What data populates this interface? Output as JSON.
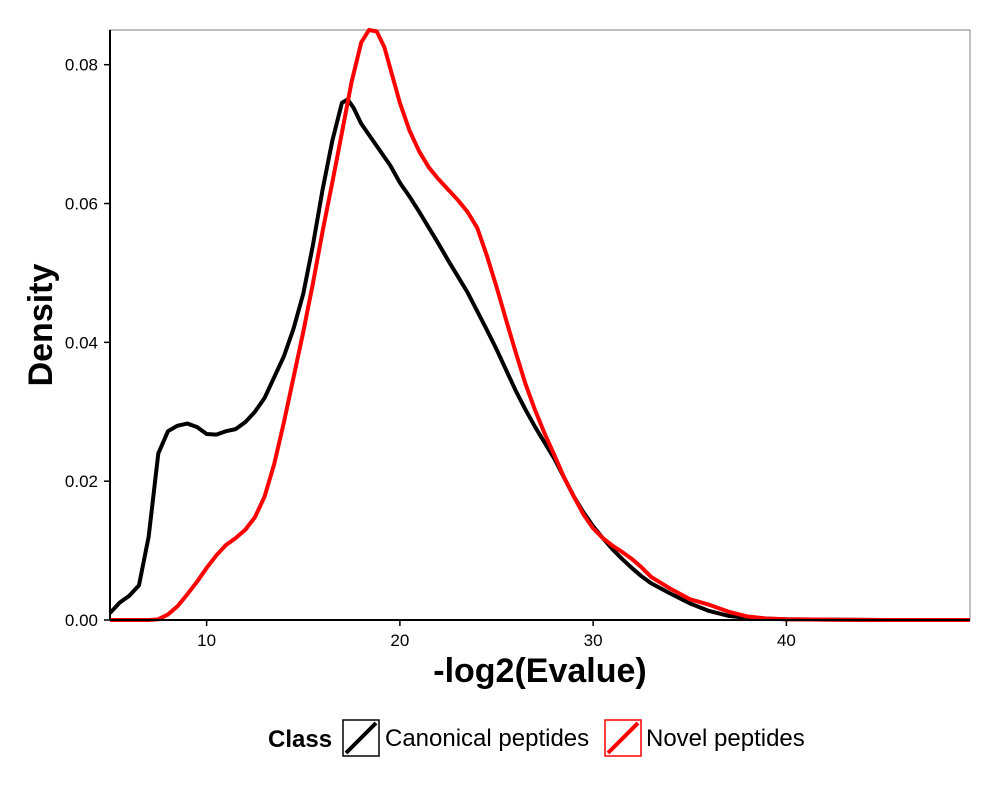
{
  "chart_data": {
    "type": "line",
    "title": "",
    "xlabel": "-log2(Evalue)",
    "ylabel": "Density",
    "xlim": [
      5,
      49.5
    ],
    "ylim": [
      0,
      0.085
    ],
    "x_ticks": [
      10,
      20,
      30,
      40
    ],
    "y_ticks": [
      0,
      0.02,
      0.04,
      0.06,
      0.08
    ],
    "x_tick_labels": [
      "10",
      "20",
      "30",
      "40"
    ],
    "y_tick_labels": [
      "0.00",
      "0.02",
      "0.04",
      "0.06",
      "0.08"
    ],
    "grid": false,
    "legend_position": "bottom",
    "legend_title": "Class",
    "series": [
      {
        "name": "Canonical peptides",
        "color": "#000000",
        "x": [
          5,
          5.5,
          6,
          6.5,
          7,
          7.5,
          8,
          8.5,
          9,
          9.5,
          10,
          10.5,
          11,
          11.5,
          12,
          12.5,
          13,
          13.5,
          14,
          14.5,
          15,
          15.5,
          16,
          16.5,
          17,
          17.3,
          17.6,
          18,
          18.5,
          19,
          19.5,
          20,
          20.5,
          21,
          21.5,
          22,
          22.5,
          23,
          23.5,
          24,
          24.5,
          25,
          25.5,
          26,
          26.5,
          27,
          27.5,
          28,
          28.5,
          29,
          29.5,
          30,
          30.5,
          31,
          31.5,
          32,
          32.5,
          33,
          34,
          35,
          36,
          37,
          38,
          39,
          40,
          42,
          45,
          49.5
        ],
        "y": [
          0.001,
          0.0025,
          0.0035,
          0.005,
          0.012,
          0.024,
          0.0272,
          0.028,
          0.0283,
          0.0278,
          0.0268,
          0.0267,
          0.0272,
          0.0275,
          0.0285,
          0.03,
          0.032,
          0.035,
          0.038,
          0.042,
          0.047,
          0.054,
          0.062,
          0.069,
          0.0745,
          0.075,
          0.0738,
          0.0715,
          0.0695,
          0.0675,
          0.0655,
          0.063,
          0.061,
          0.0588,
          0.0565,
          0.0542,
          0.0518,
          0.0495,
          0.0472,
          0.0445,
          0.0418,
          0.039,
          0.036,
          0.033,
          0.0303,
          0.0278,
          0.0255,
          0.0232,
          0.0205,
          0.0178,
          0.0155,
          0.0135,
          0.0118,
          0.0102,
          0.0088,
          0.0075,
          0.0063,
          0.0053,
          0.0038,
          0.0024,
          0.0013,
          0.0006,
          0.0003,
          0.0002,
          0.0001,
          5e-05,
          0,
          0
        ]
      },
      {
        "name": "Novel peptides",
        "color": "#ff0000",
        "x": [
          5,
          6,
          7,
          7.5,
          8,
          8.5,
          9,
          9.5,
          10,
          10.5,
          11,
          11.5,
          12,
          12.5,
          13,
          13.5,
          14,
          14.5,
          15,
          15.5,
          16,
          16.5,
          17,
          17.5,
          18,
          18.4,
          18.8,
          19.2,
          19.6,
          20,
          20.5,
          21,
          21.5,
          22,
          22.5,
          23,
          23.5,
          24,
          24.5,
          25,
          25.5,
          26,
          26.5,
          27,
          27.5,
          28,
          28.5,
          29,
          29.5,
          30,
          30.5,
          31,
          31.5,
          32,
          32.5,
          33,
          34,
          35,
          36,
          37,
          38,
          39,
          40,
          42,
          45,
          49.5
        ],
        "y": [
          0,
          0,
          0,
          0.0001,
          0.0008,
          0.002,
          0.0037,
          0.0055,
          0.0075,
          0.0093,
          0.0108,
          0.0118,
          0.013,
          0.0148,
          0.0178,
          0.0225,
          0.0285,
          0.035,
          0.0415,
          0.0485,
          0.056,
          0.063,
          0.0702,
          0.0775,
          0.0832,
          0.085,
          0.0848,
          0.0825,
          0.0785,
          0.0745,
          0.0705,
          0.0675,
          0.0652,
          0.0635,
          0.062,
          0.0605,
          0.0588,
          0.0565,
          0.0525,
          0.048,
          0.0432,
          0.0385,
          0.034,
          0.0302,
          0.0268,
          0.0237,
          0.0205,
          0.0178,
          0.0152,
          0.0132,
          0.0118,
          0.0107,
          0.0098,
          0.0088,
          0.0076,
          0.0062,
          0.0045,
          0.003,
          0.0022,
          0.0012,
          0.0005,
          0.0002,
          0.0001,
          5e-05,
          0,
          0
        ]
      }
    ]
  }
}
